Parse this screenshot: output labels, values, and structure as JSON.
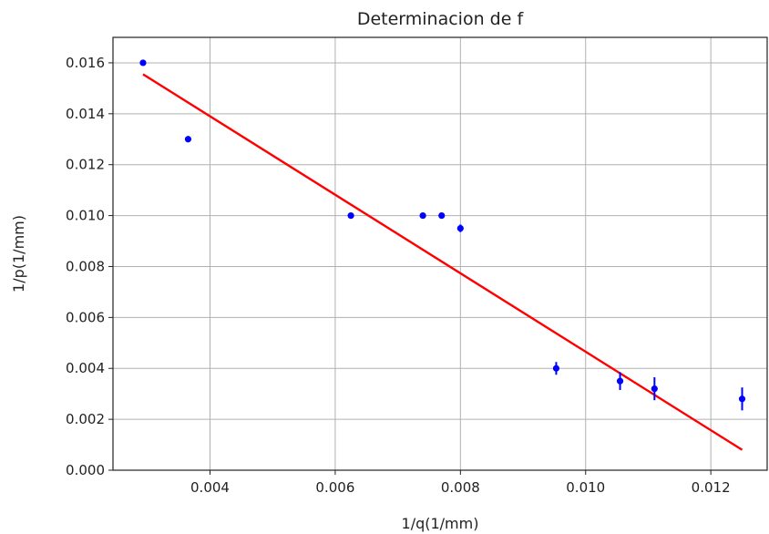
{
  "chart_data": {
    "type": "scatter",
    "title": "Determinacion de f",
    "xlabel": "1/q(1/mm)",
    "ylabel": "1/p(1/mm)",
    "xlim": [
      0.00245,
      0.0129
    ],
    "ylim": [
      0.0,
      0.017
    ],
    "xticks": [
      "0.004",
      "0.006",
      "0.008",
      "0.010",
      "0.012"
    ],
    "xtick_values": [
      0.004,
      0.006,
      0.008,
      0.01,
      0.012
    ],
    "yticks": [
      "0.000",
      "0.002",
      "0.004",
      "0.006",
      "0.008",
      "0.010",
      "0.012",
      "0.014",
      "0.016"
    ],
    "ytick_values": [
      0.0,
      0.002,
      0.004,
      0.006,
      0.008,
      0.01,
      0.012,
      0.014,
      0.016
    ],
    "grid": true,
    "points": {
      "color": "#0000ff",
      "x": [
        0.00293,
        0.00365,
        0.00625,
        0.0074,
        0.0077,
        0.008,
        0.00953,
        0.01055,
        0.0111,
        0.0125
      ],
      "y": [
        0.016,
        0.013,
        0.01,
        0.01,
        0.01,
        0.0095,
        0.004,
        0.0035,
        0.0032,
        0.0028
      ],
      "yerr": [
        0.0,
        0.0,
        0.0,
        0.0,
        0.0,
        0.00015,
        0.00025,
        0.00035,
        0.00045,
        0.00045
      ]
    },
    "fit_line": {
      "color": "#ff0000",
      "x": [
        0.00293,
        0.0125
      ],
      "y": [
        0.01555,
        0.0008
      ]
    }
  }
}
